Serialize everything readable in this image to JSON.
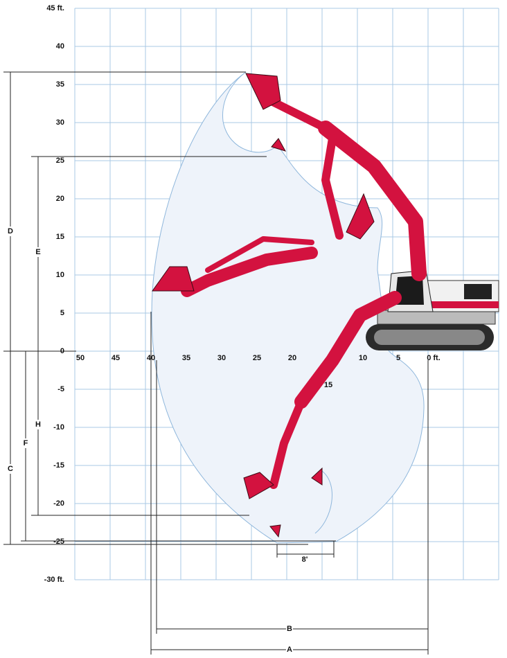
{
  "y_labels": [
    "45 ft.",
    "40",
    "35",
    "30",
    "25",
    "20",
    "15",
    "10",
    "5",
    "0",
    "-5",
    "-10",
    "-15",
    "-20",
    "-25",
    "-30 ft."
  ],
  "x_labels": [
    "50",
    "45",
    "40",
    "35",
    "30",
    "25",
    "20",
    "10",
    "5",
    "0 ft."
  ],
  "dimensions": {
    "D": "D",
    "E": "E",
    "C": "C",
    "H": "H",
    "F": "F",
    "B": "B",
    "A": "A"
  },
  "annotations": {
    "bucket_width": "8'",
    "swing": "15"
  }
}
